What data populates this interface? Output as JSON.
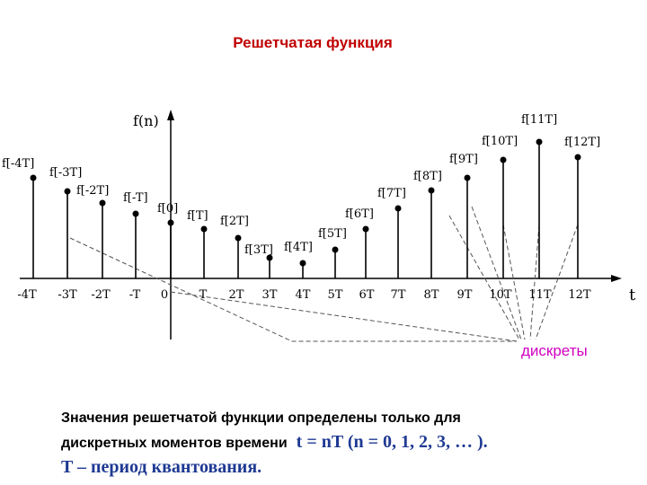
{
  "title": "Решетчатая функция",
  "y_axis_label": "f(n)",
  "x_axis_label": "t",
  "samples": [
    {
      "label": "f[-4T]",
      "tick": "-4T"
    },
    {
      "label": "f[-3T]",
      "tick": "-3T"
    },
    {
      "label": "f[-2T]",
      "tick": "-2T"
    },
    {
      "label": "f[-T]",
      "tick": "-T"
    },
    {
      "label": "f[0]",
      "tick": "0"
    },
    {
      "label": "f[T]",
      "tick": "T"
    },
    {
      "label": "f[2T]",
      "tick": "2T"
    },
    {
      "label": "f[3T]",
      "tick": "3T"
    },
    {
      "label": "f[4T]",
      "tick": "4T"
    },
    {
      "label": "f[5T]",
      "tick": "5T"
    },
    {
      "label": "f[6T]",
      "tick": "6T"
    },
    {
      "label": "f[7T]",
      "tick": "7T"
    },
    {
      "label": "f[8T]",
      "tick": "8T"
    },
    {
      "label": "f[9T]",
      "tick": "9T"
    },
    {
      "label": "f[10T]",
      "tick": "10T"
    },
    {
      "label": "f[11T]",
      "tick": "11T"
    },
    {
      "label": "f[12T]",
      "tick": "12T"
    }
  ],
  "annotation": "дискреты",
  "text": {
    "line1": "Значения решетчатой функции определены только для",
    "line2": "дискретных моментов времени",
    "formula": "t = nT (n = 0, 1, 2, 3, … ).",
    "line3": "T – период квантования."
  }
}
